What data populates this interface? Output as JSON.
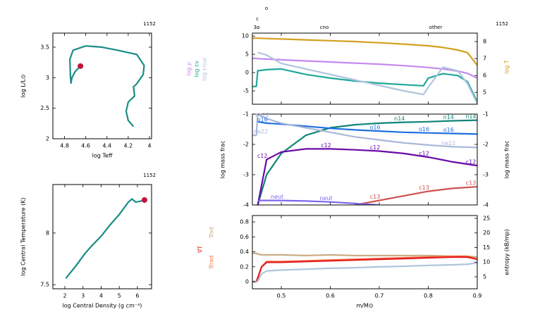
{
  "chart_data": [
    {
      "type": "line",
      "title": "1152",
      "xlabel": "log Teff",
      "ylabel": "log L/L⊙",
      "xlim": [
        4.91,
        3.98
      ],
      "ylim": [
        2,
        3.73
      ],
      "xticks": [
        4.8,
        4.6,
        4.4,
        4.2,
        4
      ],
      "yticks": [
        2,
        2.5,
        3,
        3.5
      ],
      "color": "#1a8c86",
      "x": [
        4.65,
        4.7,
        4.73,
        4.74,
        4.745,
        4.75,
        4.72,
        4.6,
        4.45,
        4.3,
        4.12,
        4.05,
        4.06,
        4.12,
        4.15,
        4.14,
        4.2,
        4.22,
        4.2,
        4.15
      ],
      "values": [
        3.19,
        3.1,
        3.0,
        2.91,
        3.05,
        3.3,
        3.45,
        3.52,
        3.5,
        3.45,
        3.38,
        3.2,
        3.05,
        2.9,
        2.85,
        2.7,
        2.6,
        2.45,
        2.3,
        2.2
      ],
      "marker": {
        "x": 4.65,
        "y": 3.19,
        "color": "#c0143c"
      }
    },
    {
      "type": "line",
      "title": "1152",
      "xlabel": "log Central Density (g cm⁻³)",
      "ylabel": "log Central Temperature (K)",
      "xlim": [
        1.34,
        6.78
      ],
      "ylim": [
        7.46,
        8.47
      ],
      "xticks": [
        2,
        3,
        4,
        5,
        6
      ],
      "yticks": [
        7.5,
        8
      ],
      "color": "#1a8c86",
      "x": [
        2.05,
        2.6,
        3.1,
        3.5,
        4.0,
        4.5,
        5.0,
        5.5,
        5.7,
        5.9,
        6.2,
        6.39
      ],
      "values": [
        7.56,
        7.68,
        7.8,
        7.88,
        7.97,
        8.08,
        8.18,
        8.3,
        8.33,
        8.3,
        8.31,
        8.32
      ],
      "marker": {
        "x": 6.39,
        "y": 8.32,
        "color": "#c0143c"
      }
    },
    {
      "type": "line",
      "title": "1152",
      "mix_labels": [
        "c",
        "o"
      ],
      "burning_labels": [
        "3α",
        "cno",
        "other"
      ],
      "xlim": [
        0.441,
        0.9
      ],
      "ylim": [
        -8.65,
        10.8
      ],
      "yticks": [
        -5,
        0,
        5,
        10
      ],
      "y2lim": [
        4.3,
        8.5
      ],
      "y2ticks": [
        5,
        6,
        7,
        8
      ],
      "x": [
        0.441,
        0.449,
        0.452,
        0.47,
        0.5,
        0.55,
        0.6,
        0.65,
        0.7,
        0.75,
        0.79,
        0.8,
        0.83,
        0.86,
        0.88,
        0.9
      ],
      "series": [
        {
          "name": "log ρ",
          "color": "#c58af0",
          "values": [
            3.9,
            3.9,
            3.8,
            3.7,
            3.5,
            3.2,
            2.9,
            2.6,
            2.3,
            1.9,
            1.5,
            1.4,
            1.0,
            0.4,
            -0.2,
            -1.5
          ]
        },
        {
          "name": "log εν",
          "color": "#20a89c",
          "values": [
            -3.8,
            -3.8,
            0.5,
            0.8,
            1.0,
            -0.5,
            -1.5,
            -2.3,
            -2.9,
            -3.3,
            -3.6,
            -1.5,
            -0.3,
            -0.8,
            -2.5,
            -8
          ]
        },
        {
          "name": "log εnuc",
          "color": "#b0c4de",
          "values": [
            null,
            null,
            5.5,
            4.8,
            2.5,
            1.0,
            -0.5,
            -2,
            -3.5,
            -5,
            -6,
            -4,
            1.5,
            0.5,
            -3,
            -8.5
          ]
        },
        {
          "name": "log T",
          "color": "#d4a020",
          "axis": "y2",
          "values": [
            8.21,
            8.2,
            8.2,
            8.18,
            8.15,
            8.1,
            8.05,
            8.0,
            7.93,
            7.85,
            7.77,
            7.75,
            7.65,
            7.5,
            7.35,
            6.6
          ]
        }
      ]
    },
    {
      "type": "line",
      "ylabel": "log mass frac",
      "y2label": "log mass frac",
      "xlim": [
        0.441,
        0.9
      ],
      "ylim": [
        -4,
        -1
      ],
      "yticks": [
        -4,
        -3,
        -2,
        -1
      ],
      "y2lim": [
        -4,
        -1
      ],
      "y2ticks": [
        -4,
        -3,
        -2,
        -1
      ],
      "x": [
        0.441,
        0.449,
        0.452,
        0.47,
        0.5,
        0.55,
        0.6,
        0.65,
        0.7,
        0.75,
        0.8,
        0.85,
        0.9
      ],
      "series": [
        {
          "name": "n14",
          "color": "#10857a",
          "values": [
            null,
            null,
            -4,
            -3,
            -2.3,
            -1.7,
            -1.45,
            -1.35,
            -1.3,
            -1.27,
            -1.25,
            -1.22,
            -1.2
          ]
        },
        {
          "name": "o16",
          "color": "#1f6fe0",
          "values": [
            null,
            null,
            -1.25,
            -1.3,
            -1.33,
            -1.4,
            -1.47,
            -1.52,
            -1.56,
            -1.6,
            -1.62,
            -1.64,
            -1.66
          ]
        },
        {
          "name": "c12",
          "color": "#6a0aa8",
          "values": [
            null,
            null,
            -4,
            -2.5,
            -2.25,
            -2.15,
            -2.15,
            -2.18,
            -2.22,
            -2.3,
            -2.42,
            -2.58,
            -2.7
          ]
        },
        {
          "name": "c13",
          "color": "#d05050",
          "values": [
            null,
            null,
            null,
            null,
            null,
            null,
            null,
            -4,
            -3.85,
            -3.7,
            -3.55,
            -3.45,
            -3.4
          ]
        },
        {
          "name": "ne22",
          "color": "#a8b8d8",
          "values": [
            -1.7,
            -1.7,
            -1.0,
            -1.15,
            -1.3,
            -1.45,
            -1.6,
            -1.75,
            -1.85,
            -1.95,
            -2.02,
            -2.08,
            -2.1
          ]
        },
        {
          "name": "neut",
          "color": "#7b68ee",
          "values": [
            null,
            null,
            -3.85,
            -3.85,
            -3.85,
            -3.87,
            -3.9,
            -3.95,
            -4,
            null,
            null,
            null,
            null
          ]
        }
      ]
    },
    {
      "type": "line",
      "xlabel": "m/M⊙",
      "y2label": "entropy (kB/mp)",
      "xlim": [
        0.441,
        0.9
      ],
      "ylim": [
        -0.094,
        0.885
      ],
      "xticks": [
        0.5,
        0.6,
        0.7,
        0.8,
        0.9
      ],
      "yticks": [
        0,
        0.2,
        0.4,
        0.6,
        0.8
      ],
      "y2lim": [
        0.9,
        25.96
      ],
      "y2ticks": [
        5,
        10,
        15,
        20,
        25
      ],
      "x": [
        0.441,
        0.449,
        0.452,
        0.46,
        0.47,
        0.5,
        0.55,
        0.6,
        0.65,
        0.7,
        0.75,
        0.8,
        0.85,
        0.88,
        0.9
      ],
      "series": [
        {
          "name": "∇ad",
          "color": "#c8aa80",
          "values": [
            0.38,
            0.38,
            0.37,
            0.36,
            0.36,
            0.36,
            0.35,
            0.36,
            0.35,
            0.35,
            0.35,
            0.35,
            0.34,
            0.34,
            0.33
          ]
        },
        {
          "name": "∇rad",
          "color": "#ff7043",
          "values": [
            0,
            0,
            0.05,
            0.2,
            0.27,
            0.27,
            0.28,
            0.29,
            0.3,
            0.31,
            0.32,
            0.33,
            0.34,
            0.34,
            0.3
          ]
        },
        {
          "name": "∇T",
          "color": "#e02020",
          "values": [
            0,
            0,
            0.05,
            0.2,
            0.26,
            0.26,
            0.27,
            0.28,
            0.29,
            0.3,
            0.31,
            0.32,
            0.33,
            0.33,
            0.3
          ]
        },
        {
          "name": "entropy",
          "color": "#b0c4de",
          "axis": "y2",
          "values": [
            3.2,
            3.2,
            3.5,
            6,
            7,
            7.3,
            7.6,
            7.9,
            8.1,
            8.4,
            8.6,
            8.9,
            9.1,
            9.3,
            9.8
          ]
        }
      ]
    }
  ]
}
